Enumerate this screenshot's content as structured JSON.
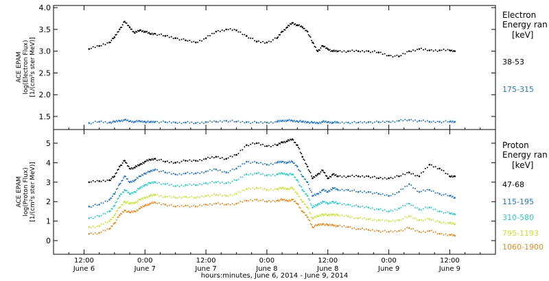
{
  "chart_data": [
    {
      "type": "scatter",
      "panel": "electron",
      "ylabel_lines": [
        "ACE EPAM",
        "log(Electron Flux)",
        "[1/(cm²s ster MeV)]"
      ],
      "ylim": [
        1.2,
        4.05
      ],
      "yticks": [
        1.5,
        2.0,
        2.5,
        3.0,
        3.5,
        4.0
      ],
      "ytick_labels": [
        "1.5",
        "2.0",
        "2.5",
        "3.0",
        "3.5",
        "4.0"
      ],
      "legend_title": [
        "Electron",
        "Energy ran",
        "[keV]"
      ],
      "x": [
        7,
        9,
        11,
        12,
        13,
        14,
        15,
        16,
        17,
        18,
        19,
        20,
        22,
        24,
        26,
        28,
        30,
        32,
        34,
        36,
        38,
        40,
        42,
        44,
        45,
        46,
        47,
        48,
        49,
        50,
        51,
        52,
        53,
        54,
        55,
        56,
        58,
        60,
        62,
        64,
        66,
        68,
        70,
        72,
        74,
        76,
        78,
        79
      ],
      "series": [
        {
          "name": "38-53",
          "color": "#000000",
          "values": [
            3.05,
            3.12,
            3.2,
            3.32,
            3.5,
            3.68,
            3.55,
            3.42,
            3.48,
            3.45,
            3.4,
            3.4,
            3.35,
            3.3,
            3.25,
            3.2,
            3.3,
            3.45,
            3.5,
            3.48,
            3.35,
            3.22,
            3.2,
            3.3,
            3.45,
            3.55,
            3.65,
            3.6,
            3.55,
            3.45,
            3.2,
            3.0,
            3.12,
            3.05,
            3.0,
            3.0,
            3.0,
            3.0,
            3.0,
            2.97,
            2.9,
            2.88,
            3.0,
            3.05,
            3.02,
            3.02,
            3.02,
            3.0
          ]
        },
        {
          "name": "175-315",
          "color": "#1f77d6",
          "values": [
            1.35,
            1.38,
            1.36,
            1.38,
            1.4,
            1.42,
            1.39,
            1.38,
            1.39,
            1.38,
            1.37,
            1.38,
            1.37,
            1.36,
            1.36,
            1.35,
            1.37,
            1.38,
            1.4,
            1.38,
            1.37,
            1.36,
            1.36,
            1.38,
            1.4,
            1.41,
            1.4,
            1.39,
            1.38,
            1.37,
            1.36,
            1.35,
            1.38,
            1.37,
            1.36,
            1.36,
            1.36,
            1.36,
            1.37,
            1.37,
            1.38,
            1.4,
            1.42,
            1.4,
            1.38,
            1.38,
            1.38,
            1.38
          ]
        }
      ]
    },
    {
      "type": "scatter",
      "panel": "proton",
      "ylabel_lines": [
        "ACE EPAM",
        "log(Proton Flux)",
        "[1/(cm²s ster MeV)]"
      ],
      "ylim": [
        -0.7,
        5.7
      ],
      "yticks": [
        0,
        1,
        2,
        3,
        4,
        5
      ],
      "ytick_labels": [
        "0",
        "1",
        "2",
        "3",
        "4",
        "5"
      ],
      "legend_title": [
        "Proton",
        "Energy ran",
        "[keV]"
      ],
      "x": [
        7,
        9,
        11,
        12,
        13,
        14,
        15,
        16,
        17,
        18,
        19,
        20,
        22,
        24,
        26,
        28,
        30,
        32,
        34,
        36,
        38,
        40,
        42,
        44,
        45,
        46,
        47,
        48,
        49,
        50,
        51,
        52,
        53,
        54,
        55,
        56,
        58,
        60,
        62,
        64,
        66,
        68,
        70,
        72,
        74,
        76,
        78,
        79
      ],
      "series": [
        {
          "name": "47-68",
          "color": "#000000",
          "values": [
            3.0,
            3.05,
            3.1,
            3.3,
            3.8,
            4.1,
            3.7,
            3.75,
            3.9,
            4.05,
            4.15,
            4.2,
            4.05,
            4.0,
            4.1,
            4.1,
            4.2,
            4.3,
            4.2,
            4.4,
            4.9,
            5.0,
            4.85,
            4.9,
            5.05,
            5.1,
            5.2,
            4.9,
            4.3,
            3.8,
            3.2,
            3.4,
            3.6,
            3.2,
            3.4,
            3.3,
            3.3,
            3.3,
            3.3,
            3.2,
            3.2,
            3.3,
            3.5,
            3.3,
            3.9,
            3.7,
            3.3,
            3.3
          ]
        },
        {
          "name": "115-195",
          "color": "#1f77d6",
          "values": [
            1.75,
            1.85,
            2.1,
            2.4,
            2.9,
            3.3,
            3.0,
            3.1,
            3.3,
            3.45,
            3.55,
            3.65,
            3.5,
            3.4,
            3.45,
            3.45,
            3.55,
            3.65,
            3.5,
            3.7,
            4.05,
            4.0,
            3.9,
            4.0,
            4.05,
            4.0,
            4.05,
            3.8,
            3.3,
            3.0,
            2.3,
            2.4,
            2.6,
            2.5,
            2.7,
            2.6,
            2.6,
            2.5,
            2.5,
            2.4,
            2.3,
            2.5,
            2.9,
            2.5,
            2.6,
            2.4,
            2.3,
            2.2
          ]
        },
        {
          "name": "310-580",
          "color": "#22d3c8",
          "values": [
            1.15,
            1.25,
            1.5,
            1.8,
            2.3,
            2.6,
            2.4,
            2.5,
            2.7,
            2.85,
            2.95,
            3.0,
            2.9,
            2.8,
            2.85,
            2.85,
            2.95,
            3.0,
            2.95,
            3.1,
            3.4,
            3.45,
            3.35,
            3.4,
            3.45,
            3.4,
            3.4,
            3.1,
            2.6,
            2.3,
            1.7,
            1.85,
            2.0,
            1.9,
            2.0,
            1.9,
            1.85,
            1.75,
            1.7,
            1.6,
            1.5,
            1.65,
            1.9,
            1.6,
            1.7,
            1.5,
            1.4,
            1.35
          ]
        },
        {
          "name": "795-1193",
          "color": "#c8e62a",
          "values": [
            0.7,
            0.75,
            1.0,
            1.3,
            1.7,
            2.0,
            1.9,
            1.95,
            2.1,
            2.2,
            2.3,
            2.35,
            2.25,
            2.2,
            2.25,
            2.2,
            2.3,
            2.35,
            2.3,
            2.4,
            2.65,
            2.7,
            2.6,
            2.65,
            2.7,
            2.65,
            2.7,
            2.4,
            2.0,
            1.7,
            1.15,
            1.25,
            1.35,
            1.3,
            1.35,
            1.3,
            1.25,
            1.15,
            1.1,
            1.05,
            1.0,
            1.05,
            1.25,
            1.05,
            1.1,
            0.95,
            0.9,
            0.85
          ]
        },
        {
          "name": "1060-1900",
          "color": "#f08a1c",
          "values": [
            0.35,
            0.4,
            0.6,
            0.9,
            1.3,
            1.55,
            1.45,
            1.5,
            1.65,
            1.8,
            1.9,
            1.95,
            1.85,
            1.75,
            1.8,
            1.75,
            1.85,
            1.9,
            1.85,
            1.9,
            2.05,
            2.1,
            2.0,
            2.05,
            2.1,
            2.05,
            2.1,
            1.9,
            1.5,
            1.2,
            0.7,
            0.8,
            0.85,
            0.8,
            0.8,
            0.75,
            0.7,
            0.6,
            0.55,
            0.5,
            0.45,
            0.5,
            0.65,
            0.45,
            0.5,
            0.35,
            0.3,
            0.25
          ]
        }
      ]
    }
  ],
  "x_axis": {
    "range_hours": [
      0,
      87
    ],
    "ticks": [
      {
        "hour": 6,
        "time": "12:00",
        "day": "June 6"
      },
      {
        "hour": 18,
        "time": "0:00",
        "day": "June 7"
      },
      {
        "hour": 30,
        "time": "12:00",
        "day": "June 7"
      },
      {
        "hour": 42,
        "time": "0:00",
        "day": "June 8"
      },
      {
        "hour": 54,
        "time": "12:00",
        "day": "June 8"
      },
      {
        "hour": 66,
        "time": "0:00",
        "day": "June 9"
      },
      {
        "hour": 78,
        "time": "12:00",
        "day": "June 9"
      }
    ],
    "label": "hours:minutes, June  6, 2014 - June  9, 2014"
  }
}
